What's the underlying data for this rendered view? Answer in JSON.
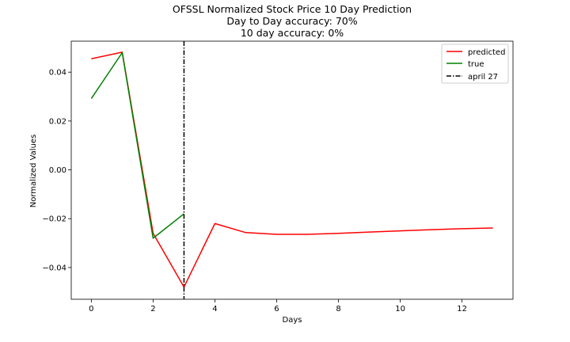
{
  "chart_data": {
    "type": "line",
    "title_lines": [
      "OFSSL Normalized Stock Price 10 Day Prediction",
      "Day to Day accuracy: 70%",
      "10 day accuracy: 0%"
    ],
    "xlabel": "Days",
    "ylabel": "Normalized Values",
    "xlim": [
      -0.65,
      13.65
    ],
    "ylim": [
      -0.053,
      0.0527
    ],
    "x_ticks": [
      0,
      2,
      4,
      6,
      8,
      10,
      12
    ],
    "x_tick_labels": [
      "0",
      "2",
      "4",
      "6",
      "8",
      "10",
      "12"
    ],
    "y_ticks": [
      0.04,
      0.02,
      0.0,
      -0.02,
      -0.04
    ],
    "y_tick_labels": [
      "0.04",
      "0.02",
      "0.00",
      "−0.02",
      "−0.04"
    ],
    "series": [
      {
        "name": "predicted",
        "color": "#ff0000",
        "x": [
          0,
          1,
          2,
          3,
          4,
          5,
          6,
          7,
          8,
          9,
          10,
          11,
          12,
          13
        ],
        "values": [
          0.0455,
          0.0482,
          -0.026,
          -0.048,
          -0.022,
          -0.0257,
          -0.0264,
          -0.0264,
          -0.026,
          -0.0255,
          -0.025,
          -0.0245,
          -0.0241,
          -0.0238
        ]
      },
      {
        "name": "true",
        "color": "#008000",
        "x": [
          0,
          1,
          2,
          3
        ],
        "values": [
          0.0292,
          0.048,
          -0.028,
          -0.018
        ]
      }
    ],
    "vline": {
      "name": "april 27",
      "x": 3,
      "color": "#000000",
      "style": "dashdot"
    },
    "legend_position": "upper-right",
    "grid": false
  }
}
